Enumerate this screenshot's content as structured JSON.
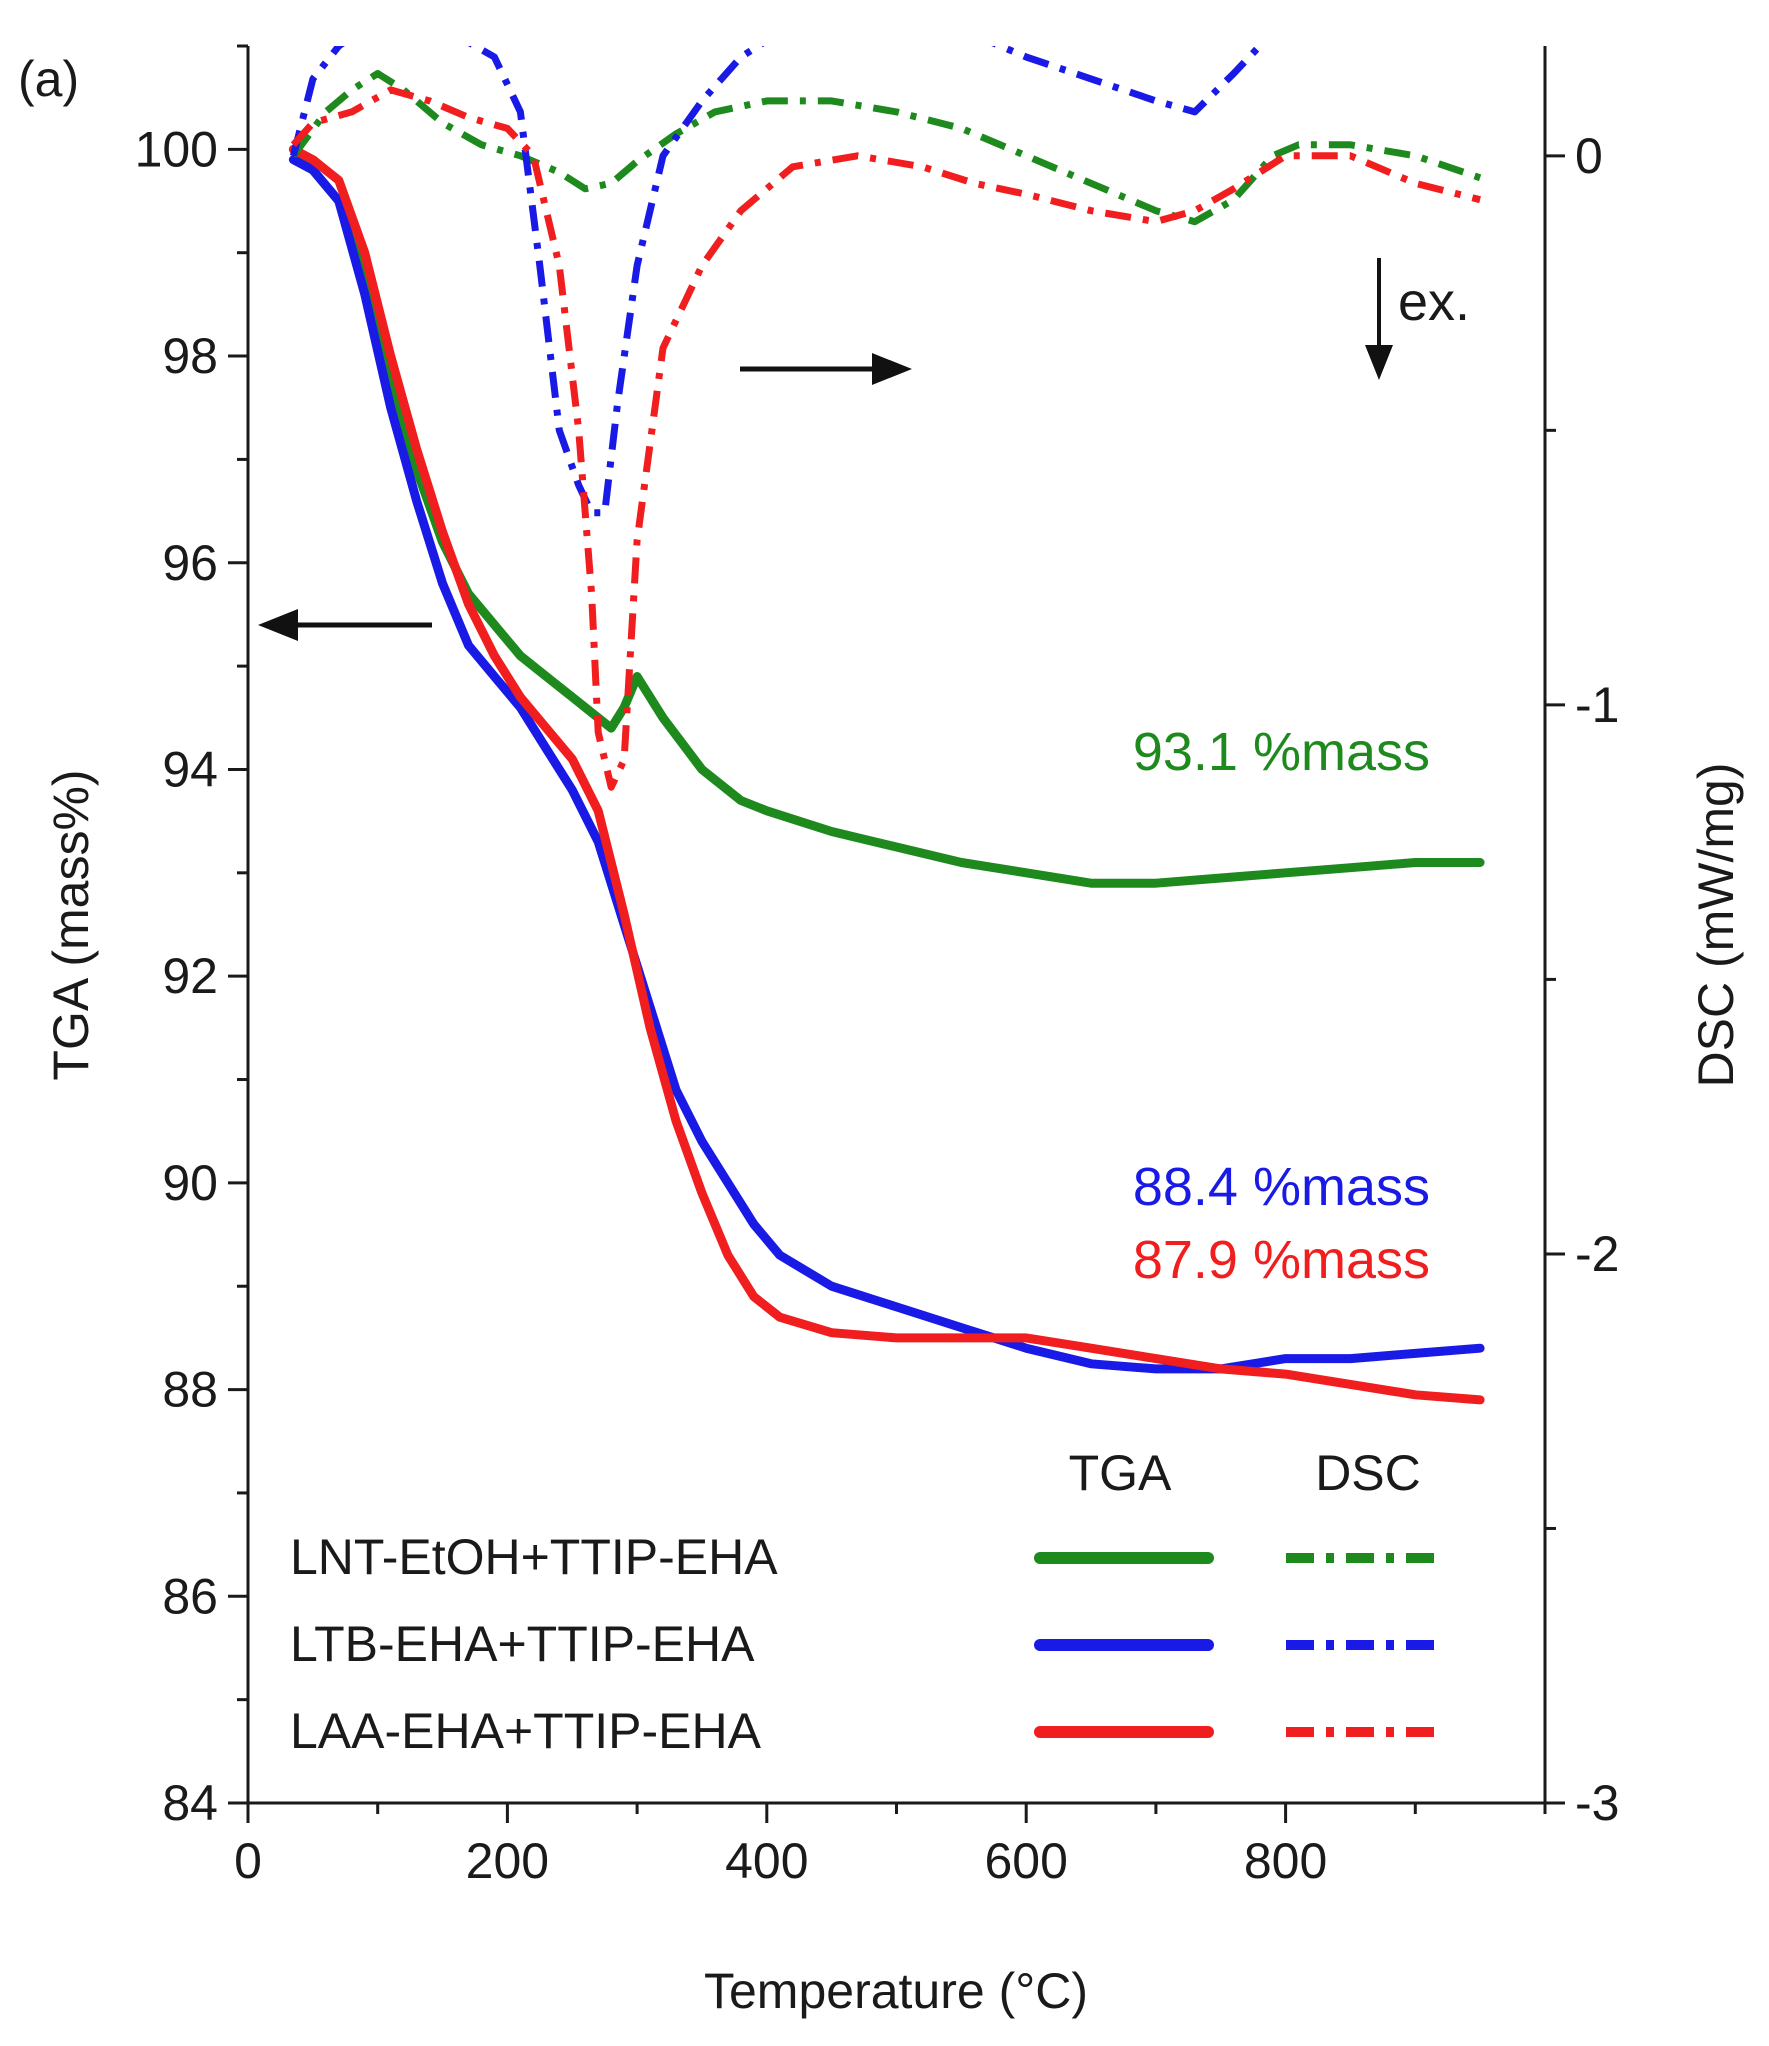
{
  "chart_data": {
    "type": "line",
    "panel_label": "(a)",
    "xlabel": "Temperature (°C)",
    "ylabel_left": "TGA (mass%)",
    "ylabel_right": "DSC (mW/mg)",
    "xlim": [
      0,
      1000
    ],
    "ylim_left": [
      84,
      101
    ],
    "ylim_right": [
      -3,
      0.2
    ],
    "x_ticks": [
      0,
      200,
      400,
      600,
      800
    ],
    "y_left_ticks": [
      84,
      86,
      88,
      90,
      92,
      94,
      96,
      98,
      100
    ],
    "y_right_ticks": [
      -3,
      -2,
      -1,
      0
    ],
    "grid": false,
    "colors": {
      "green": "#1e8a1e",
      "blue": "#1a1ae6",
      "red": "#f01e1e"
    },
    "legend": {
      "placement": "bottom-right",
      "header_tga": "TGA",
      "header_dsc": "DSC",
      "entries": [
        {
          "label": "LNT-EtOH+TTIP-EHA",
          "color": "#1e8a1e"
        },
        {
          "label": "LTB-EHA+TTIP-EHA",
          "color": "#1a1ae6"
        },
        {
          "label": "LAA-EHA+TTIP-EHA",
          "color": "#f01e1e"
        }
      ]
    },
    "annotations": [
      {
        "text": "93.1 %mass",
        "color": "#1e8a1e"
      },
      {
        "text": "88.4 %mass",
        "color": "#1a1ae6"
      },
      {
        "text": "87.9 %mass",
        "color": "#f01e1e"
      },
      {
        "text": "ex.",
        "color": "#1a1a1a"
      }
    ],
    "series": [
      {
        "name": "LNT-EtOH+TTIP-EHA",
        "measure": "TGA",
        "axis": "left",
        "style": "solid",
        "color": "#1e8a1e",
        "x": [
          35,
          50,
          70,
          90,
          110,
          130,
          150,
          170,
          190,
          210,
          230,
          250,
          270,
          280,
          290,
          300,
          320,
          350,
          380,
          400,
          450,
          500,
          550,
          600,
          650,
          700,
          750,
          800,
          850,
          900,
          950
        ],
        "y": [
          100,
          99.8,
          99.5,
          98.8,
          97.8,
          96.9,
          96.2,
          95.7,
          95.4,
          95.1,
          94.9,
          94.7,
          94.5,
          94.4,
          94.6,
          94.9,
          94.5,
          94.0,
          93.7,
          93.6,
          93.4,
          93.25,
          93.1,
          93.0,
          92.9,
          92.9,
          92.95,
          93.0,
          93.05,
          93.1,
          93.1
        ]
      },
      {
        "name": "LTB-EHA+TTIP-EHA",
        "measure": "TGA",
        "axis": "left",
        "style": "solid",
        "color": "#1a1ae6",
        "x": [
          35,
          50,
          70,
          90,
          110,
          130,
          150,
          170,
          190,
          210,
          230,
          250,
          270,
          290,
          310,
          330,
          350,
          370,
          390,
          410,
          450,
          500,
          550,
          600,
          650,
          700,
          750,
          800,
          850,
          900,
          950
        ],
        "y": [
          99.9,
          99.8,
          99.5,
          98.6,
          97.5,
          96.6,
          95.8,
          95.2,
          94.9,
          94.6,
          94.2,
          93.8,
          93.3,
          92.5,
          91.7,
          90.9,
          90.4,
          90.0,
          89.6,
          89.3,
          89.0,
          88.8,
          88.6,
          88.4,
          88.25,
          88.2,
          88.2,
          88.3,
          88.3,
          88.35,
          88.4
        ]
      },
      {
        "name": "LAA-EHA+TTIP-EHA",
        "measure": "TGA",
        "axis": "left",
        "style": "solid",
        "color": "#f01e1e",
        "x": [
          35,
          50,
          70,
          90,
          110,
          130,
          150,
          170,
          190,
          210,
          230,
          250,
          270,
          290,
          310,
          330,
          350,
          370,
          390,
          410,
          450,
          500,
          550,
          600,
          650,
          700,
          750,
          800,
          850,
          900,
          950
        ],
        "y": [
          100,
          99.9,
          99.7,
          99.0,
          98.0,
          97.1,
          96.3,
          95.6,
          95.1,
          94.7,
          94.4,
          94.1,
          93.6,
          92.6,
          91.5,
          90.6,
          89.9,
          89.3,
          88.9,
          88.7,
          88.55,
          88.5,
          88.5,
          88.5,
          88.4,
          88.3,
          88.2,
          88.15,
          88.05,
          87.95,
          87.9
        ]
      },
      {
        "name": "LNT-EtOH+TTIP-EHA",
        "measure": "DSC",
        "axis": "right",
        "style": "dash-dot",
        "color": "#1e8a1e",
        "x": [
          35,
          60,
          80,
          100,
          120,
          150,
          180,
          210,
          240,
          260,
          280,
          300,
          330,
          360,
          400,
          450,
          500,
          550,
          600,
          650,
          700,
          730,
          760,
          790,
          810,
          850,
          900,
          950
        ],
        "y": [
          0.0,
          0.08,
          0.12,
          0.15,
          0.12,
          0.06,
          0.02,
          0.0,
          -0.03,
          -0.06,
          -0.05,
          -0.01,
          0.04,
          0.08,
          0.1,
          0.1,
          0.08,
          0.05,
          0.0,
          -0.05,
          -0.1,
          -0.12,
          -0.08,
          0.0,
          0.02,
          0.02,
          0.0,
          -0.04
        ]
      },
      {
        "name": "LTB-EHA+TTIP-EHA",
        "measure": "DSC",
        "axis": "right",
        "style": "dash-dot",
        "color": "#1a1ae6",
        "x": [
          35,
          50,
          70,
          100,
          130,
          160,
          190,
          210,
          225,
          240,
          255,
          265,
          275,
          285,
          300,
          320,
          350,
          380,
          420,
          470,
          520,
          560,
          600,
          650,
          700,
          730,
          760,
          780
        ],
        "y": [
          0.0,
          0.14,
          0.2,
          0.25,
          0.24,
          0.22,
          0.18,
          0.08,
          -0.2,
          -0.5,
          -0.6,
          -0.65,
          -0.65,
          -0.45,
          -0.2,
          0.0,
          0.1,
          0.18,
          0.24,
          0.27,
          0.26,
          0.22,
          0.18,
          0.14,
          0.1,
          0.08,
          0.15,
          0.2
        ]
      },
      {
        "name": "LAA-EHA+TTIP-EHA",
        "measure": "DSC",
        "axis": "right",
        "style": "dash-dot",
        "color": "#f01e1e",
        "x": [
          35,
          50,
          80,
          110,
          140,
          170,
          200,
          220,
          240,
          255,
          265,
          270,
          280,
          290,
          300,
          320,
          350,
          380,
          420,
          470,
          520,
          560,
          600,
          650,
          700,
          730,
          760,
          800,
          850,
          900,
          950
        ],
        "y": [
          0.02,
          0.06,
          0.08,
          0.12,
          0.1,
          0.07,
          0.05,
          0.0,
          -0.2,
          -0.5,
          -0.8,
          -1.05,
          -1.15,
          -1.1,
          -0.7,
          -0.35,
          -0.2,
          -0.1,
          -0.02,
          0.0,
          -0.02,
          -0.05,
          -0.07,
          -0.1,
          -0.12,
          -0.1,
          -0.06,
          0.0,
          0.0,
          -0.05,
          -0.08
        ]
      }
    ]
  }
}
